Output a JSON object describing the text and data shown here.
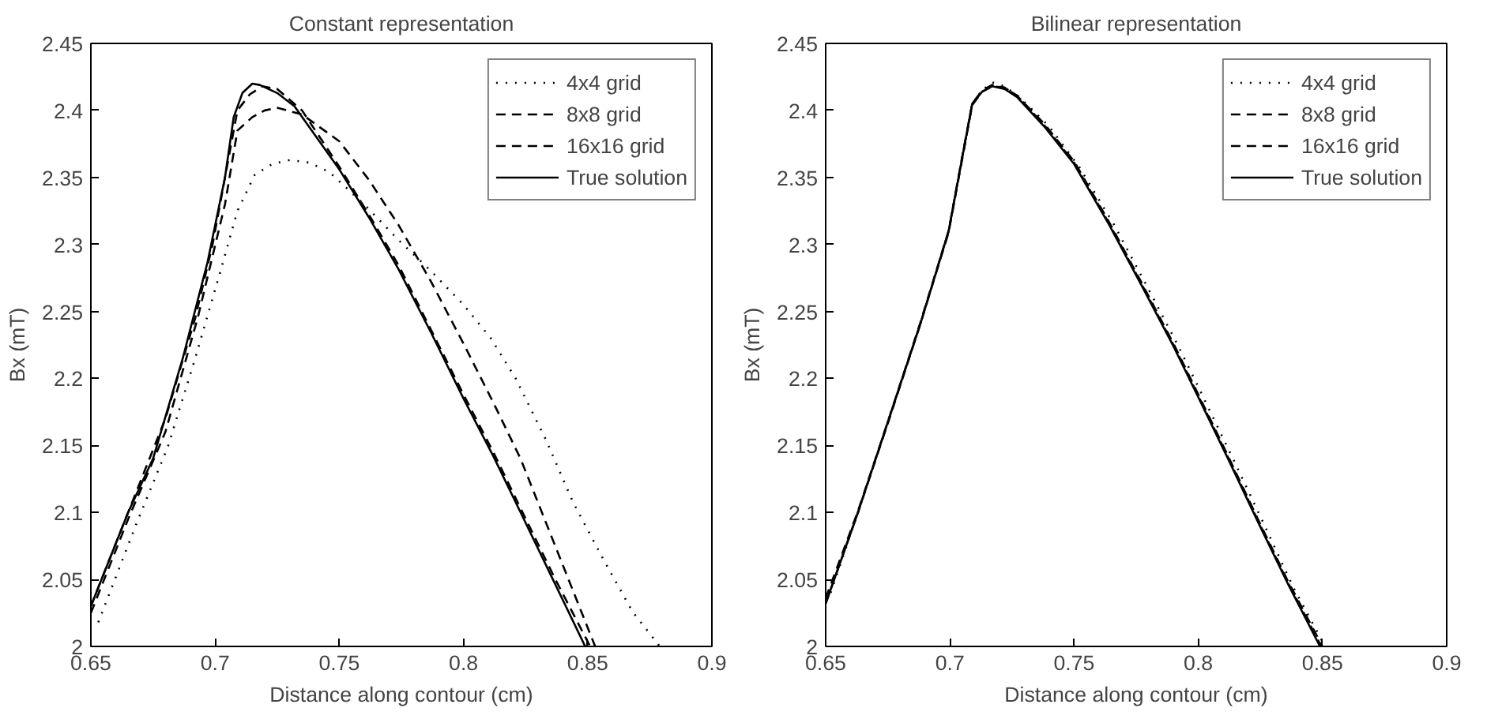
{
  "chart_data": [
    {
      "type": "line",
      "title": "Constant representation",
      "xlabel": "Distance along contour (cm)",
      "ylabel": "Bx (mT)",
      "xlim": [
        0.65,
        0.9
      ],
      "ylim": [
        2,
        2.45
      ],
      "xticks": [
        0.65,
        0.7,
        0.75,
        0.8,
        0.85,
        0.9
      ],
      "yticks": [
        2,
        2.05,
        2.1,
        2.15,
        2.2,
        2.25,
        2.3,
        2.35,
        2.4,
        2.45
      ],
      "legend": "top right",
      "grid": false,
      "series": [
        {
          "name": "4x4 grid",
          "color": "#000000",
          "line_style": "dotted",
          "x": [
            0.653,
            0.668,
            0.681,
            0.692,
            0.702,
            0.709,
            0.716,
            0.723,
            0.73,
            0.738,
            0.746,
            0.76,
            0.774,
            0.787,
            0.8,
            0.811,
            0.821,
            0.833,
            0.844,
            0.856,
            0.868,
            0.879
          ],
          "values": [
            2.018,
            2.09,
            2.149,
            2.215,
            2.279,
            2.325,
            2.352,
            2.36,
            2.363,
            2.361,
            2.354,
            2.33,
            2.303,
            2.28,
            2.255,
            2.23,
            2.2,
            2.155,
            2.108,
            2.066,
            2.026,
            2.0
          ]
        },
        {
          "name": "8x8 grid",
          "color": "#000000",
          "line_style": "dashed",
          "x": [
            0.65,
            0.665,
            0.68,
            0.693,
            0.704,
            0.709,
            0.715,
            0.72,
            0.725,
            0.735,
            0.75,
            0.762,
            0.774,
            0.787,
            0.8,
            0.812,
            0.823,
            0.838,
            0.853
          ],
          "values": [
            2.025,
            2.095,
            2.16,
            2.245,
            2.33,
            2.385,
            2.395,
            2.4,
            2.402,
            2.397,
            2.377,
            2.348,
            2.314,
            2.272,
            2.226,
            2.182,
            2.14,
            2.07,
            2.0
          ]
        },
        {
          "name": "16x16 grid",
          "color": "#000000",
          "line_style": "dashed",
          "x": [
            0.65,
            0.665,
            0.68,
            0.692,
            0.699,
            0.705,
            0.709,
            0.714,
            0.719,
            0.725,
            0.735,
            0.75,
            0.762,
            0.774,
            0.787,
            0.8,
            0.812,
            0.823,
            0.837,
            0.851
          ],
          "values": [
            2.03,
            2.1,
            2.17,
            2.245,
            2.3,
            2.36,
            2.4,
            2.412,
            2.418,
            2.416,
            2.4,
            2.358,
            2.322,
            2.284,
            2.236,
            2.188,
            2.145,
            2.103,
            2.05,
            2.0
          ]
        },
        {
          "name": "True solution",
          "color": "#000000",
          "line_style": "solid",
          "x": [
            0.65,
            0.665,
            0.675,
            0.687,
            0.697,
            0.704,
            0.7075,
            0.711,
            0.715,
            0.718,
            0.725,
            0.732,
            0.75,
            0.762,
            0.774,
            0.787,
            0.8,
            0.812,
            0.823,
            0.836,
            0.849
          ],
          "values": [
            2.03,
            2.1,
            2.14,
            2.215,
            2.287,
            2.35,
            2.395,
            2.413,
            2.42,
            2.419,
            2.413,
            2.403,
            2.356,
            2.32,
            2.281,
            2.234,
            2.185,
            2.142,
            2.1,
            2.05,
            2.0
          ]
        }
      ]
    },
    {
      "type": "line",
      "title": "Bilinear representation",
      "xlabel": "Distance along contour (cm)",
      "ylabel": "Bx (mT)",
      "xlim": [
        0.65,
        0.9
      ],
      "ylim": [
        2,
        2.45
      ],
      "xticks": [
        0.65,
        0.7,
        0.75,
        0.8,
        0.85,
        0.9
      ],
      "yticks": [
        2,
        2.05,
        2.1,
        2.15,
        2.2,
        2.25,
        2.3,
        2.35,
        2.4,
        2.45
      ],
      "legend": "top right",
      "grid": false,
      "series": [
        {
          "name": "4x4 grid",
          "color": "#000000",
          "line_style": "dotted",
          "x": [
            0.652,
            0.663,
            0.676,
            0.688,
            0.6995,
            0.705,
            0.709,
            0.713,
            0.717,
            0.722,
            0.728,
            0.74,
            0.752,
            0.766,
            0.779,
            0.792,
            0.802,
            0.814,
            0.826,
            0.838,
            0.851
          ],
          "values": [
            2.04,
            2.1,
            2.173,
            2.24,
            2.31,
            2.365,
            2.405,
            2.415,
            2.421,
            2.418,
            2.41,
            2.388,
            2.358,
            2.315,
            2.27,
            2.224,
            2.186,
            2.14,
            2.093,
            2.045,
            2.0
          ]
        },
        {
          "name": "8x8 grid",
          "color": "#000000",
          "line_style": "dashed",
          "x": [
            0.65,
            0.663,
            0.676,
            0.688,
            0.6995,
            0.705,
            0.709,
            0.713,
            0.717,
            0.722,
            0.727,
            0.738,
            0.75,
            0.764,
            0.777,
            0.79,
            0.8,
            0.812,
            0.824,
            0.836,
            0.85
          ],
          "values": [
            2.036,
            2.101,
            2.173,
            2.241,
            2.31,
            2.366,
            2.405,
            2.415,
            2.419,
            2.417,
            2.411,
            2.39,
            2.362,
            2.317,
            2.272,
            2.226,
            2.188,
            2.142,
            2.095,
            2.049,
            2.0
          ]
        },
        {
          "name": "16x16 grid",
          "color": "#000000",
          "line_style": "dashed",
          "x": [
            0.65,
            0.663,
            0.676,
            0.688,
            0.6995,
            0.705,
            0.709,
            0.713,
            0.717,
            0.722,
            0.727,
            0.738,
            0.75,
            0.764,
            0.777,
            0.79,
            0.8,
            0.812,
            0.824,
            0.836,
            0.8495
          ],
          "values": [
            2.032,
            2.1,
            2.172,
            2.24,
            2.309,
            2.364,
            2.404,
            2.414,
            2.418,
            2.417,
            2.411,
            2.389,
            2.361,
            2.316,
            2.271,
            2.225,
            2.187,
            2.141,
            2.094,
            2.048,
            2.0
          ]
        },
        {
          "name": "True solution",
          "color": "#000000",
          "line_style": "solid",
          "x": [
            0.65,
            0.663,
            0.676,
            0.688,
            0.6995,
            0.705,
            0.709,
            0.713,
            0.717,
            0.722,
            0.727,
            0.738,
            0.75,
            0.764,
            0.777,
            0.79,
            0.8,
            0.812,
            0.824,
            0.836,
            0.849
          ],
          "values": [
            2.032,
            2.1,
            2.173,
            2.24,
            2.31,
            2.365,
            2.405,
            2.414,
            2.418,
            2.416,
            2.41,
            2.388,
            2.36,
            2.315,
            2.27,
            2.224,
            2.186,
            2.14,
            2.093,
            2.047,
            2.0
          ]
        }
      ]
    }
  ]
}
